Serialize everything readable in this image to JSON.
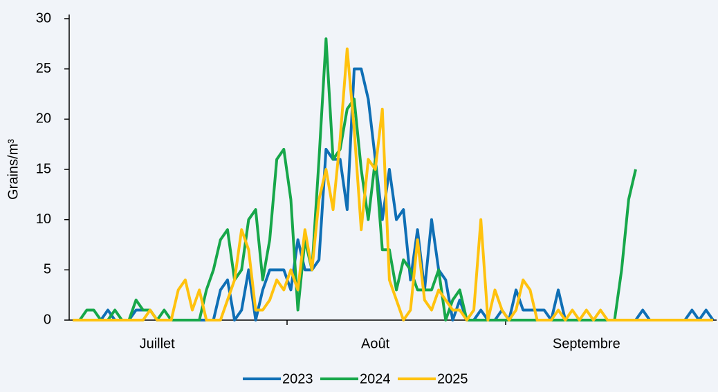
{
  "chart_data": {
    "type": "line",
    "y_label": "Grains/m³",
    "categories": [
      null,
      null,
      null,
      null,
      null,
      null,
      null,
      null,
      null,
      null,
      null,
      null,
      "Juillet",
      null,
      null,
      null,
      null,
      null,
      null,
      null,
      null,
      null,
      null,
      null,
      null,
      null,
      null,
      null,
      null,
      null,
      null,
      null,
      null,
      null,
      null,
      null,
      null,
      null,
      null,
      null,
      null,
      null,
      null,
      "Août",
      null,
      null,
      null,
      null,
      null,
      null,
      null,
      null,
      null,
      null,
      null,
      null,
      null,
      null,
      null,
      null,
      null,
      null,
      null,
      null,
      null,
      null,
      null,
      null,
      null,
      null,
      null,
      null,
      null,
      "Septembre",
      null,
      null,
      null,
      null,
      null,
      null,
      null,
      null,
      null,
      null,
      null,
      null,
      null,
      null,
      null,
      null,
      null,
      null
    ],
    "series": [
      {
        "name": "2023",
        "color": "#0f6fb5",
        "values": [
          0,
          0,
          0,
          0,
          0,
          1,
          0,
          0,
          0,
          1,
          1,
          1,
          0,
          0,
          0,
          0,
          0,
          0,
          0,
          0,
          0,
          3,
          4,
          0,
          1,
          5,
          0,
          3,
          5,
          5,
          5,
          3,
          8,
          5,
          5,
          6,
          17,
          16,
          16,
          11,
          25,
          25,
          22,
          16,
          10,
          15,
          10,
          11,
          4,
          9,
          3,
          10,
          5,
          4,
          0,
          2,
          0,
          0,
          1,
          0,
          0,
          1,
          0,
          3,
          1,
          1,
          1,
          1,
          0,
          3,
          0,
          0,
          0,
          0,
          0,
          0,
          0,
          0,
          0,
          0,
          0,
          1,
          0,
          0,
          0,
          0,
          0,
          0,
          1,
          0,
          1,
          0
        ]
      },
      {
        "name": "2024",
        "color": "#17a74a",
        "values": [
          0,
          0,
          1,
          1,
          0,
          0,
          1,
          0,
          0,
          2,
          1,
          1,
          0,
          1,
          0,
          0,
          0,
          0,
          0,
          3,
          5,
          8,
          9,
          4,
          5,
          10,
          11,
          4,
          8,
          16,
          17,
          12,
          1,
          8,
          5,
          16,
          28,
          16,
          17,
          21,
          22,
          15,
          10,
          16,
          7,
          7,
          3,
          6,
          5,
          3,
          3,
          3,
          5,
          0,
          2,
          3,
          0,
          0,
          0,
          0,
          0,
          0,
          0,
          0,
          0,
          0,
          0,
          0,
          0,
          0,
          0,
          0,
          0,
          0,
          0,
          0,
          0,
          0,
          5,
          12,
          15,
          null,
          null,
          null,
          null,
          null,
          null,
          null,
          null,
          null,
          null,
          null
        ]
      },
      {
        "name": "2025",
        "color": "#ffc20e",
        "values": [
          0,
          0,
          0,
          0,
          0,
          0,
          0,
          0,
          0,
          0,
          0,
          1,
          0,
          0,
          0,
          3,
          4,
          1,
          3,
          0,
          0,
          0,
          2,
          4,
          9,
          7,
          1,
          1,
          2,
          4,
          3,
          5,
          3,
          9,
          5,
          12,
          15,
          11,
          18,
          27,
          19,
          9,
          16,
          15,
          21,
          4,
          2,
          0,
          1,
          8,
          2,
          1,
          3,
          2,
          1,
          1,
          0,
          1,
          10,
          0,
          3,
          1,
          0,
          1,
          4,
          3,
          0,
          0,
          0,
          1,
          0,
          1,
          0,
          1,
          0,
          1,
          0,
          0,
          0,
          0,
          0,
          0,
          0,
          0,
          0,
          0,
          0,
          0,
          0,
          0,
          0,
          0
        ]
      }
    ],
    "ylim": [
      0,
      30
    ],
    "yticks": [
      0,
      5,
      10,
      15,
      20,
      25,
      30
    ],
    "grid": false,
    "legend": "bottom"
  }
}
